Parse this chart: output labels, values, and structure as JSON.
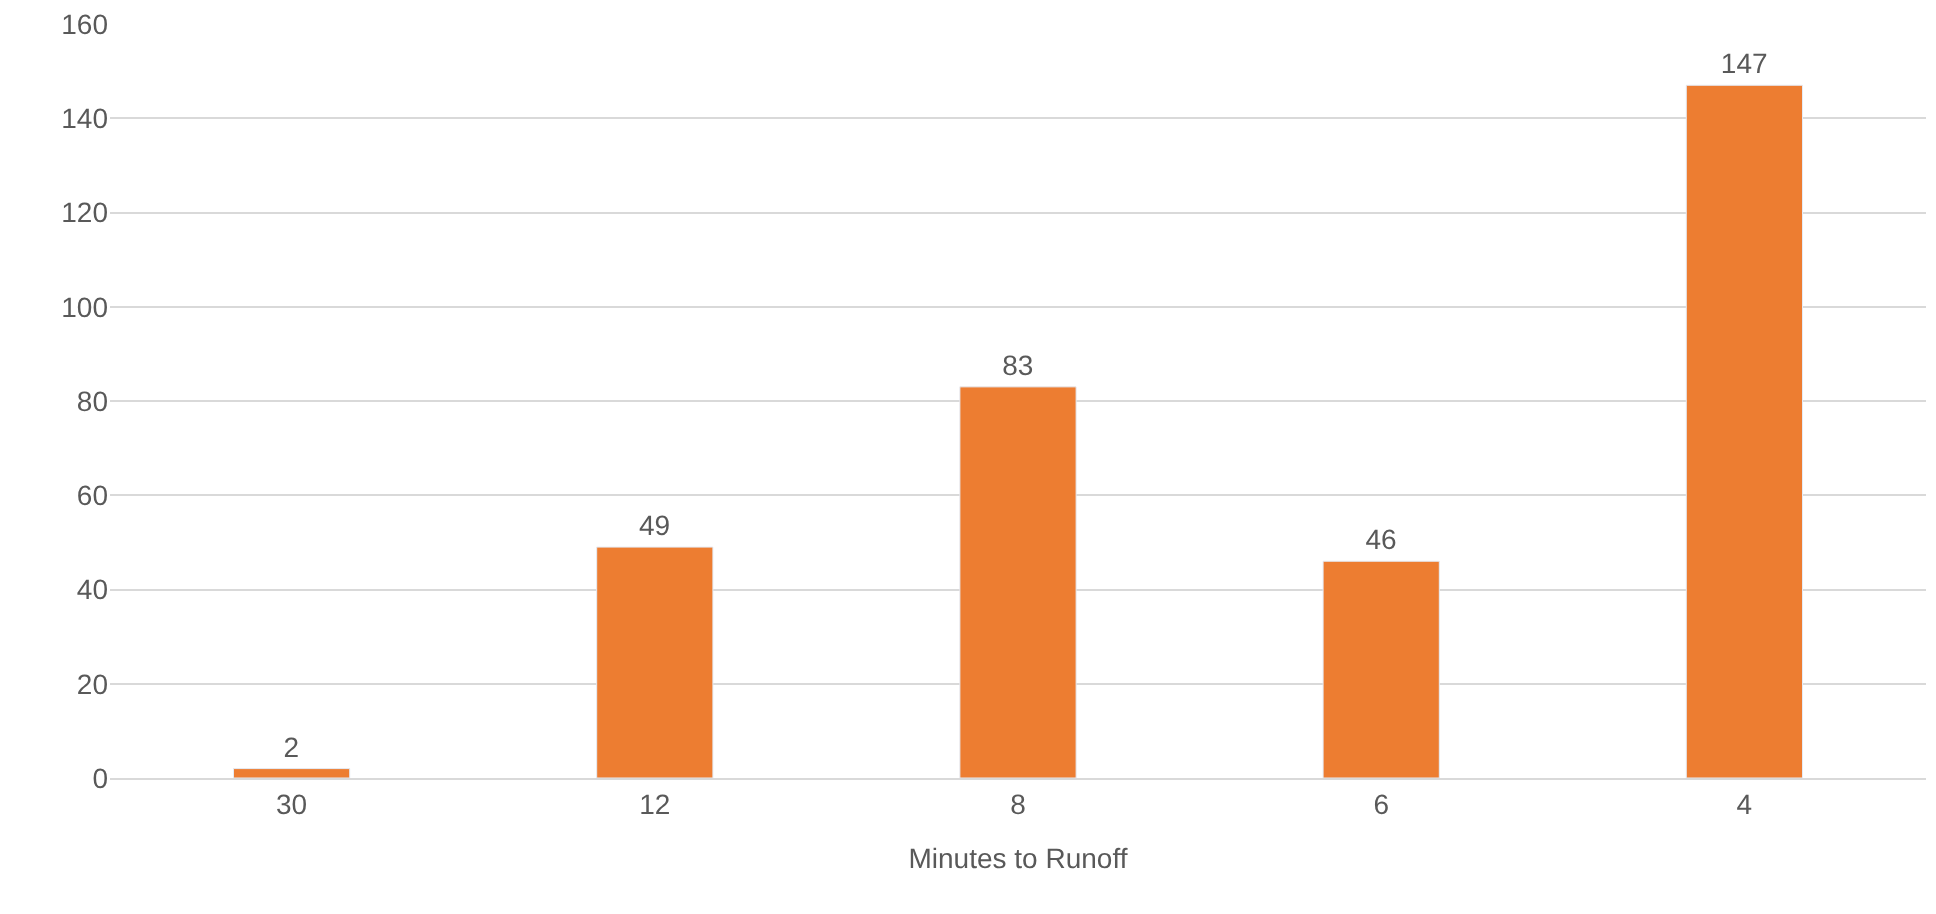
{
  "chart_data": {
    "type": "bar",
    "xlabel": "Minutes to Runoff",
    "categories": [
      "30",
      "12",
      "8",
      "6",
      "4"
    ],
    "values": [
      2,
      49,
      83,
      46,
      147
    ],
    "color": "#ed7d31",
    "ylim": [
      0,
      160
    ],
    "yticks": [
      0,
      20,
      40,
      60,
      80,
      100,
      120,
      140,
      160
    ],
    "grid": "y",
    "data_labels": true
  }
}
